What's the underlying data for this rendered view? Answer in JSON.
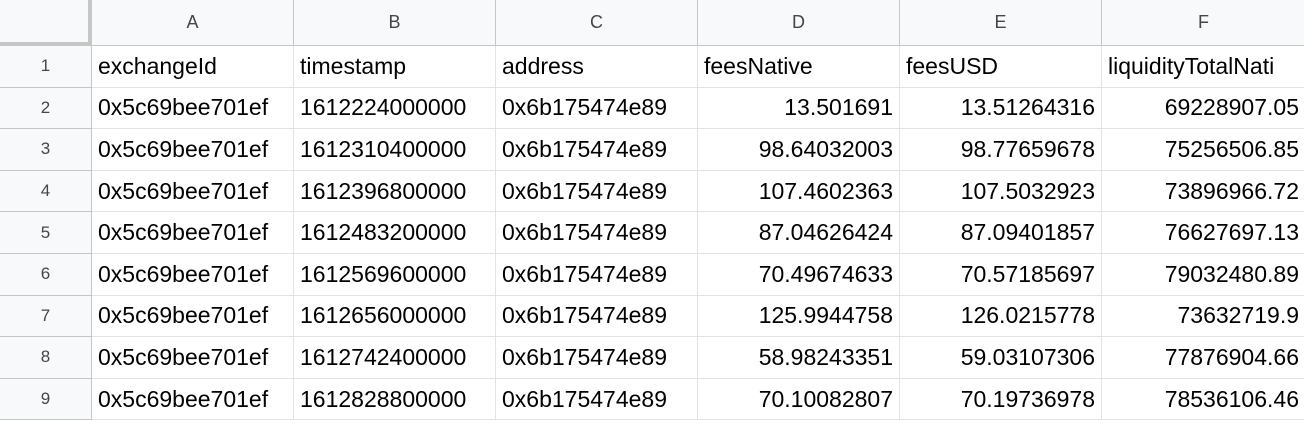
{
  "columns": [
    "A",
    "B",
    "C",
    "D",
    "E",
    "F"
  ],
  "rows": [
    {
      "num": "1",
      "cells": [
        "exchangeId",
        "timestamp",
        "address",
        "feesNative",
        "feesUSD",
        "liquidityTotalNati"
      ]
    },
    {
      "num": "2",
      "cells": [
        "0x5c69bee701ef",
        "1612224000000",
        "0x6b175474e89",
        "13.501691",
        "13.51264316",
        "69228907.05"
      ]
    },
    {
      "num": "3",
      "cells": [
        "0x5c69bee701ef",
        "1612310400000",
        "0x6b175474e89",
        "98.64032003",
        "98.77659678",
        "75256506.85"
      ]
    },
    {
      "num": "4",
      "cells": [
        "0x5c69bee701ef",
        "1612396800000",
        "0x6b175474e89",
        "107.4602363",
        "107.5032923",
        "73896966.72"
      ]
    },
    {
      "num": "5",
      "cells": [
        "0x5c69bee701ef",
        "1612483200000",
        "0x6b175474e89",
        "87.04626424",
        "87.09401857",
        "76627697.13"
      ]
    },
    {
      "num": "6",
      "cells": [
        "0x5c69bee701ef",
        "1612569600000",
        "0x6b175474e89",
        "70.49674633",
        "70.57185697",
        "79032480.89"
      ]
    },
    {
      "num": "7",
      "cells": [
        "0x5c69bee701ef",
        "1612656000000",
        "0x6b175474e89",
        "125.9944758",
        "126.0215778",
        "73632719.9"
      ]
    },
    {
      "num": "8",
      "cells": [
        "0x5c69bee701ef",
        "1612742400000",
        "0x6b175474e89",
        "58.98243351",
        "59.03107306",
        "77876904.66"
      ]
    },
    {
      "num": "9",
      "cells": [
        "0x5c69bee701ef",
        "1612828800000",
        "0x6b175474e89",
        "70.10082807",
        "70.19736978",
        "78536106.46"
      ]
    }
  ]
}
